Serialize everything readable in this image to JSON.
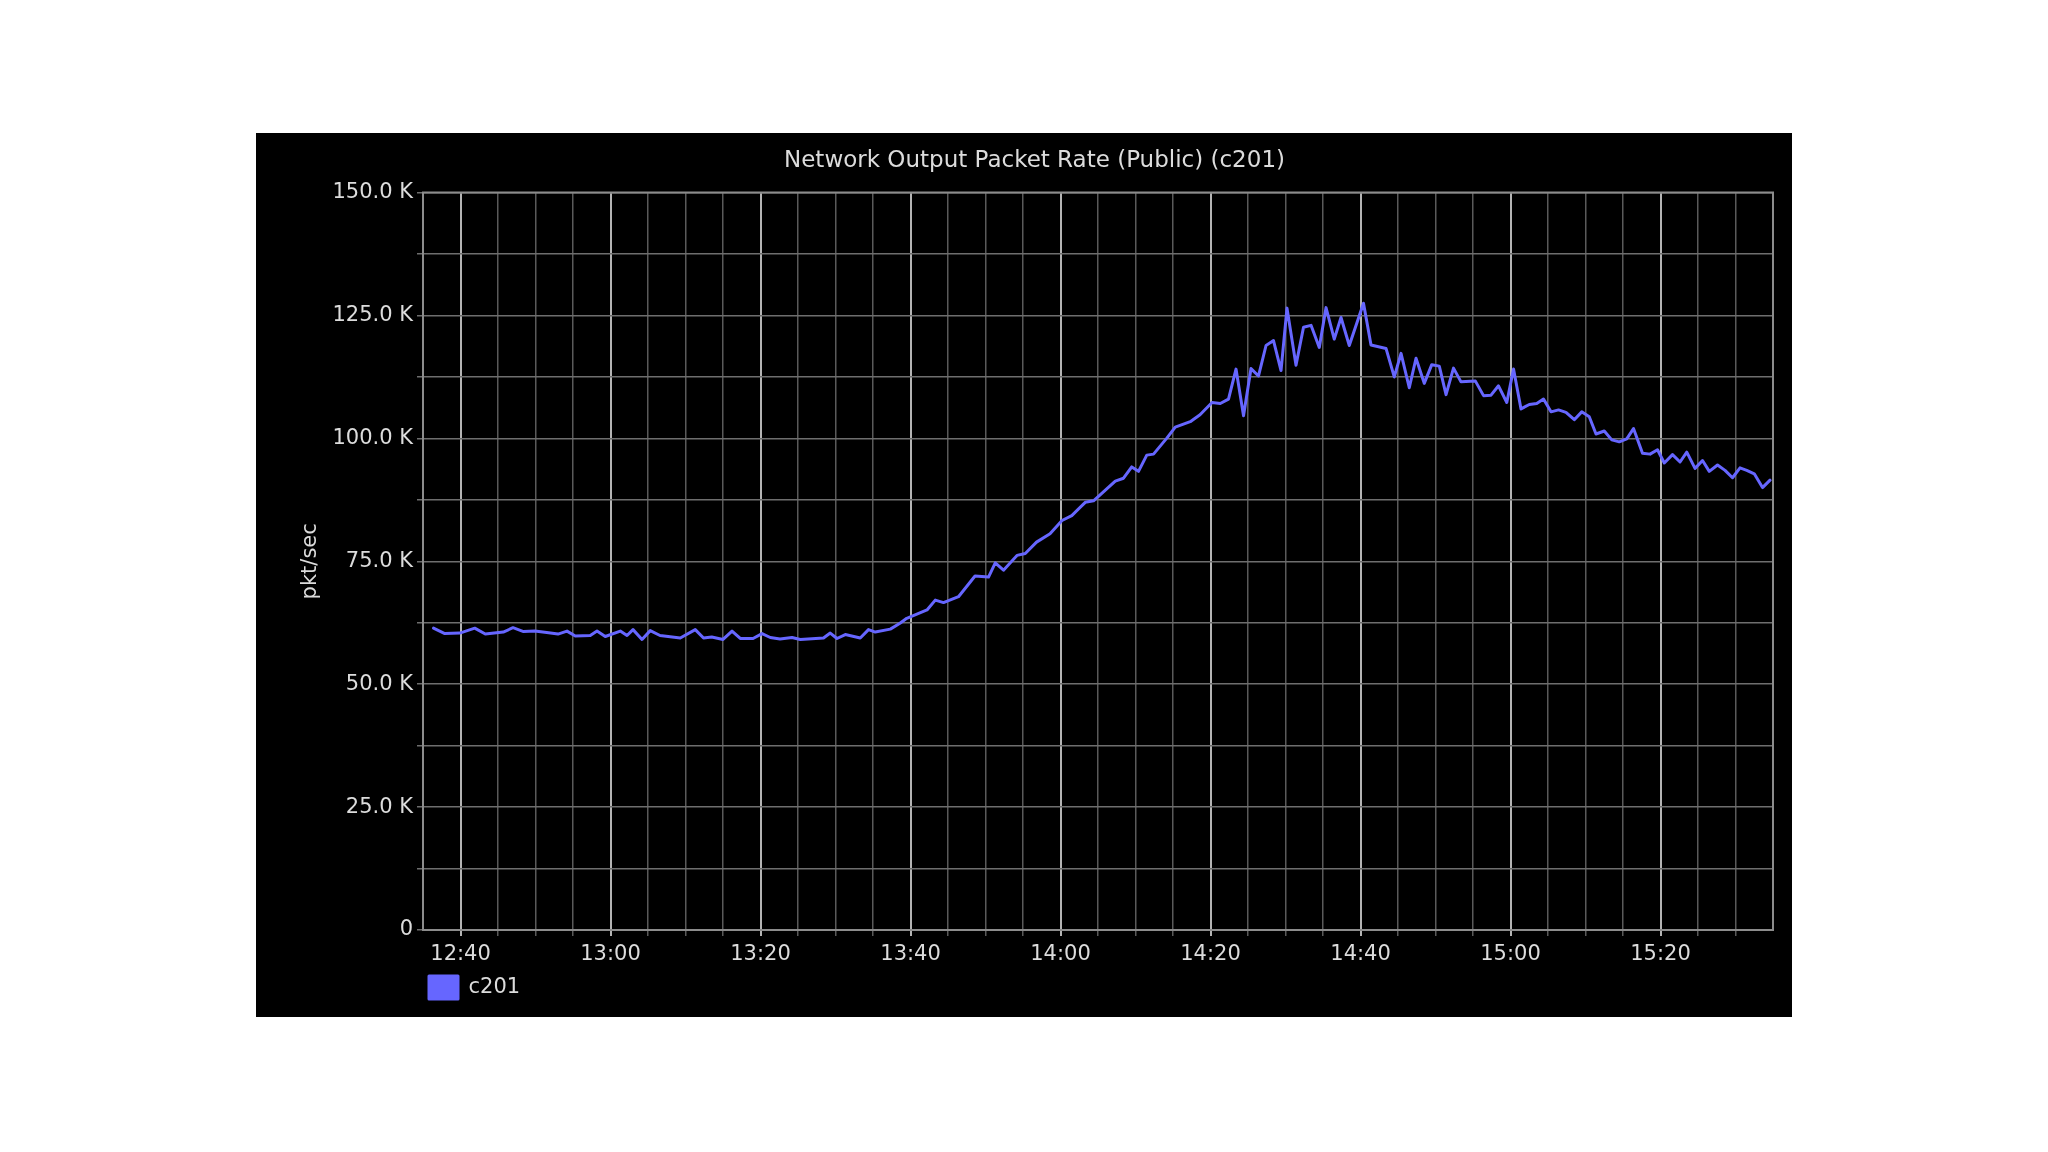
{
  "chart_data": {
    "type": "line",
    "title": "Network Output Packet Rate (Public) (c201)",
    "ylabel": "pkt/sec",
    "x": [
      12.6067,
      12.6317,
      12.665,
      12.6983,
      12.7217,
      12.7617,
      12.7833,
      12.8067,
      12.8317,
      12.8583,
      12.8833,
      12.9033,
      12.9217,
      12.955,
      12.97,
      12.9883,
      13.0217,
      13.0367,
      13.05,
      13.07,
      13.0883,
      13.11,
      13.155,
      13.1883,
      13.2067,
      13.225,
      13.25,
      13.27,
      13.2883,
      13.3167,
      13.3367,
      13.355,
      13.3767,
      13.4033,
      13.4217,
      13.4733,
      13.4883,
      13.5033,
      13.5217,
      13.555,
      13.5733,
      13.5883,
      13.6217,
      13.6433,
      13.6583,
      13.7033,
      13.7217,
      13.74,
      13.7733,
      13.81,
      13.84,
      13.855,
      13.8733,
      13.9033,
      13.9217,
      13.9467,
      13.9767,
      14.0033,
      14.025,
      14.055,
      14.0733,
      14.0917,
      14.1217,
      14.14,
      14.1583,
      14.1733,
      14.1917,
      14.2067,
      14.2367,
      14.255,
      14.2883,
      14.31,
      14.3367,
      14.355,
      14.3733,
      14.39,
      14.4067,
      14.4233,
      14.44,
      14.4567,
      14.4733,
      14.49,
      14.5033,
      14.5233,
      14.54,
      14.5567,
      14.575,
      14.59,
      14.6083,
      14.6233,
      14.6417,
      14.6733,
      14.69,
      14.7233,
      14.7417,
      14.7567,
      14.775,
      14.79,
      14.8083,
      14.825,
      14.8417,
      14.8567,
      14.8733,
      14.89,
      14.9217,
      14.94,
      14.9567,
      14.9733,
      14.9917,
      15.0067,
      15.0233,
      15.0417,
      15.0583,
      15.0733,
      15.09,
      15.1067,
      15.1233,
      15.1417,
      15.1583,
      15.175,
      15.19,
      15.2083,
      15.225,
      15.2417,
      15.2583,
      15.2733,
      15.2933,
      15.31,
      15.3267,
      15.3417,
      15.36,
      15.3767,
      15.3917,
      15.41,
      15.4267,
      15.4417,
      15.46,
      15.4767,
      15.4933,
      15.51,
      15.525,
      15.5417,
      15.56,
      15.5767
    ],
    "series": [
      {
        "name": "c201",
        "color": "#6666ff",
        "values": [
          61400,
          60300,
          60400,
          61400,
          60200,
          60600,
          61500,
          60700,
          60800,
          60500,
          60200,
          60800,
          59800,
          59900,
          60800,
          59700,
          60800,
          59900,
          61100,
          59100,
          60900,
          59900,
          59400,
          61100,
          59400,
          59600,
          59100,
          60800,
          59300,
          59300,
          60300,
          59500,
          59200,
          59500,
          59100,
          59400,
          60400,
          59300,
          60100,
          59400,
          61100,
          60600,
          61200,
          62400,
          63400,
          65100,
          67100,
          66600,
          67800,
          72000,
          71800,
          74700,
          73200,
          76200,
          76600,
          78900,
          80600,
          83300,
          84300,
          87000,
          87300,
          88800,
          91300,
          91900,
          94200,
          93300,
          96600,
          96800,
          100100,
          102300,
          103400,
          104800,
          107300,
          107100,
          108000,
          114100,
          104600,
          114200,
          112700,
          118900,
          119900,
          113800,
          126500,
          114900,
          122600,
          123000,
          118500,
          126600,
          120200,
          124600,
          118900,
          127500,
          119000,
          118300,
          112500,
          117300,
          110300,
          116300,
          111200,
          115000,
          114700,
          108900,
          114300,
          111500,
          111700,
          108700,
          108800,
          110700,
          107300,
          114100,
          106000,
          106900,
          107100,
          108000,
          105400,
          105800,
          105300,
          103800,
          105400,
          104400,
          100900,
          101500,
          99700,
          99300,
          99900,
          102000,
          97000,
          96800,
          97700,
          95000,
          96700,
          95200,
          97200,
          93900,
          95500,
          93300,
          94600,
          93500,
          92000,
          94000,
          93500,
          92800,
          90000,
          91500
        ]
      }
    ],
    "xlim": [
      12.5833,
      15.5833
    ],
    "xticks": [
      {
        "value": 12.6667,
        "label": "12:40"
      },
      {
        "value": 12.75,
        "label": null
      },
      {
        "value": 12.8333,
        "label": null
      },
      {
        "value": 12.9167,
        "label": null
      },
      {
        "value": 13,
        "label": "13:00"
      },
      {
        "value": 13.0833,
        "label": null
      },
      {
        "value": 13.1667,
        "label": null
      },
      {
        "value": 13.25,
        "label": null
      },
      {
        "value": 13.3333,
        "label": "13:20"
      },
      {
        "value": 13.4167,
        "label": null
      },
      {
        "value": 13.5,
        "label": null
      },
      {
        "value": 13.5833,
        "label": null
      },
      {
        "value": 13.6667,
        "label": "13:40"
      },
      {
        "value": 13.75,
        "label": null
      },
      {
        "value": 13.8333,
        "label": null
      },
      {
        "value": 13.9167,
        "label": null
      },
      {
        "value": 14,
        "label": "14:00"
      },
      {
        "value": 14.0833,
        "label": null
      },
      {
        "value": 14.1667,
        "label": null
      },
      {
        "value": 14.25,
        "label": null
      },
      {
        "value": 14.3333,
        "label": "14:20"
      },
      {
        "value": 14.4167,
        "label": null
      },
      {
        "value": 14.5,
        "label": null
      },
      {
        "value": 14.5833,
        "label": null
      },
      {
        "value": 14.6667,
        "label": "14:40"
      },
      {
        "value": 14.75,
        "label": null
      },
      {
        "value": 14.8333,
        "label": null
      },
      {
        "value": 14.9167,
        "label": null
      },
      {
        "value": 15,
        "label": "15:00"
      },
      {
        "value": 15.0833,
        "label": null
      },
      {
        "value": 15.1667,
        "label": null
      },
      {
        "value": 15.25,
        "label": null
      },
      {
        "value": 15.3333,
        "label": "15:20"
      },
      {
        "value": 15.4167,
        "label": null
      },
      {
        "value": 15.5,
        "label": null
      }
    ],
    "ylim": [
      0,
      150000
    ],
    "yticks": [
      0,
      {
        "value": 12500,
        "label": null
      },
      {
        "value": 25000,
        "label": "25.0 K"
      },
      {
        "value": 37500,
        "label": null
      },
      {
        "value": 50000,
        "label": "50.0 K"
      },
      {
        "value": 62500,
        "label": null
      },
      {
        "value": 75000,
        "label": "75.0 K"
      },
      {
        "value": 87500,
        "label": null
      },
      {
        "value": 100000,
        "label": "100.0 K"
      },
      {
        "value": 112500,
        "label": null
      },
      {
        "value": 125000,
        "label": "125.0 K"
      },
      {
        "value": 137500,
        "label": null
      },
      {
        "value": 150000,
        "label": "150.0 K"
      }
    ],
    "grid": true,
    "legend": "bottom left",
    "marker": "none"
  }
}
